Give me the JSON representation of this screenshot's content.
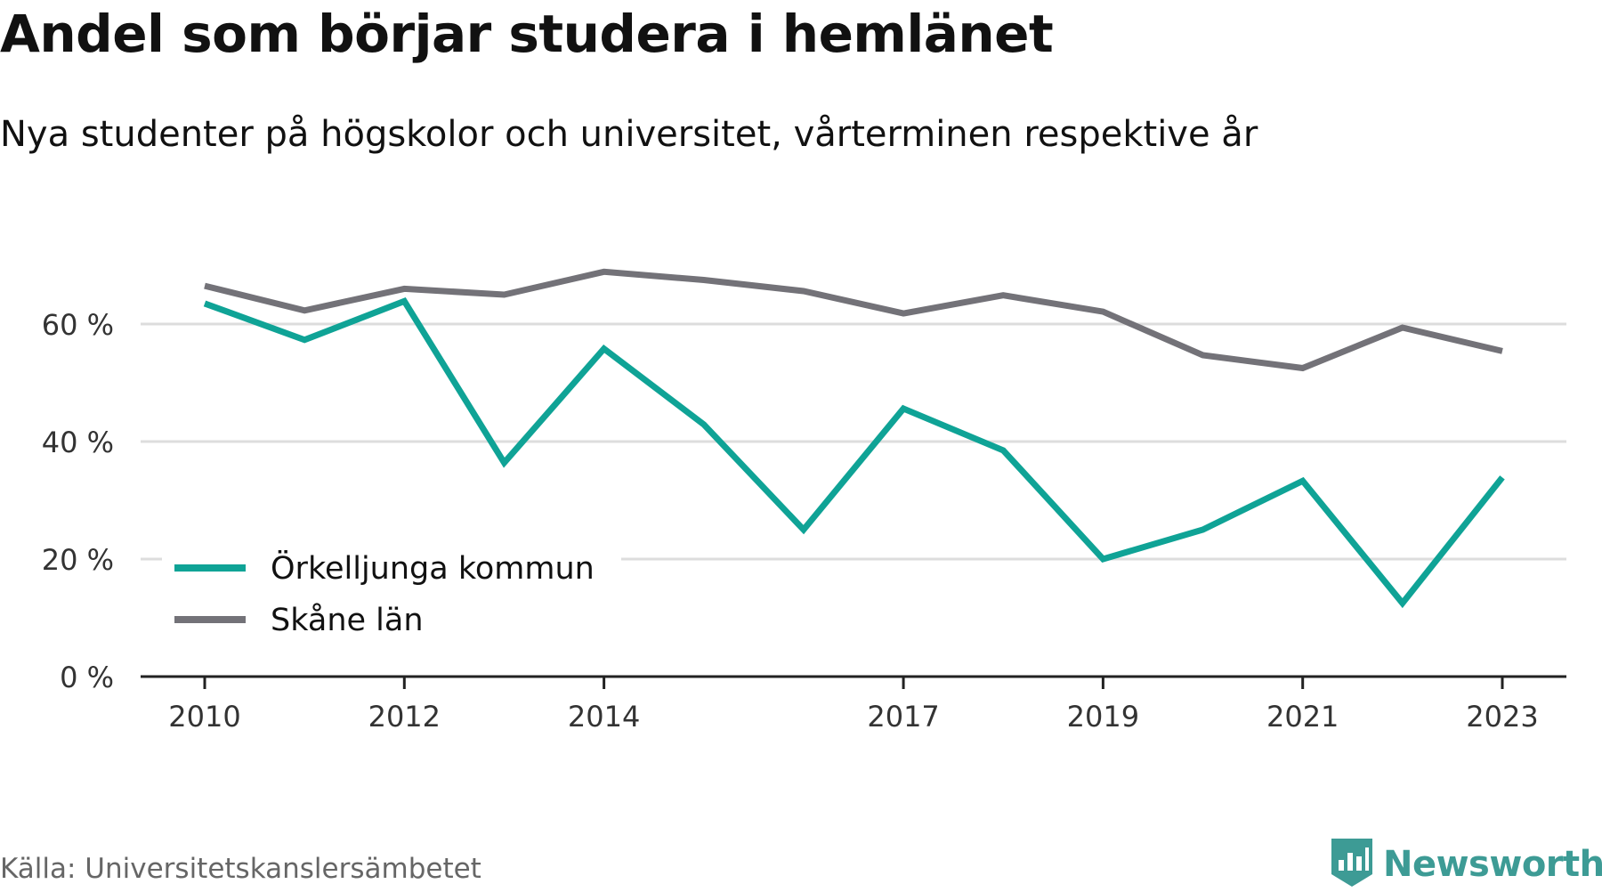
{
  "title": "Andel som börjar studera i hemlänet",
  "subtitle": "Nya studenter på högskolor och universitet, vårterminen respektive år",
  "source": "Källa: Universitetskanslersämbetet",
  "brand": {
    "name": "Newsworthy",
    "icon": "bar-chart-badge-icon",
    "color": "#3d9b95"
  },
  "chart_data": {
    "type": "line",
    "x": [
      2010,
      2011,
      2012,
      2013,
      2014,
      2015,
      2016,
      2017,
      2018,
      2019,
      2020,
      2021,
      2022,
      2023
    ],
    "x_ticks": [
      "2010",
      "2012",
      "2014",
      "2017",
      "2019",
      "2021",
      "2023"
    ],
    "y_ticks": [
      "0 %",
      "20 %",
      "40 %",
      "60 %"
    ],
    "y_tick_values": [
      0,
      20,
      40,
      60
    ],
    "ylim": [
      0,
      72
    ],
    "grid": true,
    "legend_position": "bottom-left",
    "series": [
      {
        "name": "Örkelljunga kommun",
        "color": "#0fa396",
        "values": [
          63.5,
          57.3,
          63.9,
          36.4,
          55.8,
          42.9,
          25.0,
          45.6,
          38.5,
          20.0,
          25.0,
          33.3,
          12.5,
          33.9
        ]
      },
      {
        "name": "Skåne län",
        "color": "#737278",
        "values": [
          66.5,
          62.3,
          66.0,
          65.0,
          68.9,
          67.5,
          65.6,
          61.8,
          64.9,
          62.1,
          54.7,
          52.5,
          59.4,
          55.4
        ]
      }
    ]
  }
}
